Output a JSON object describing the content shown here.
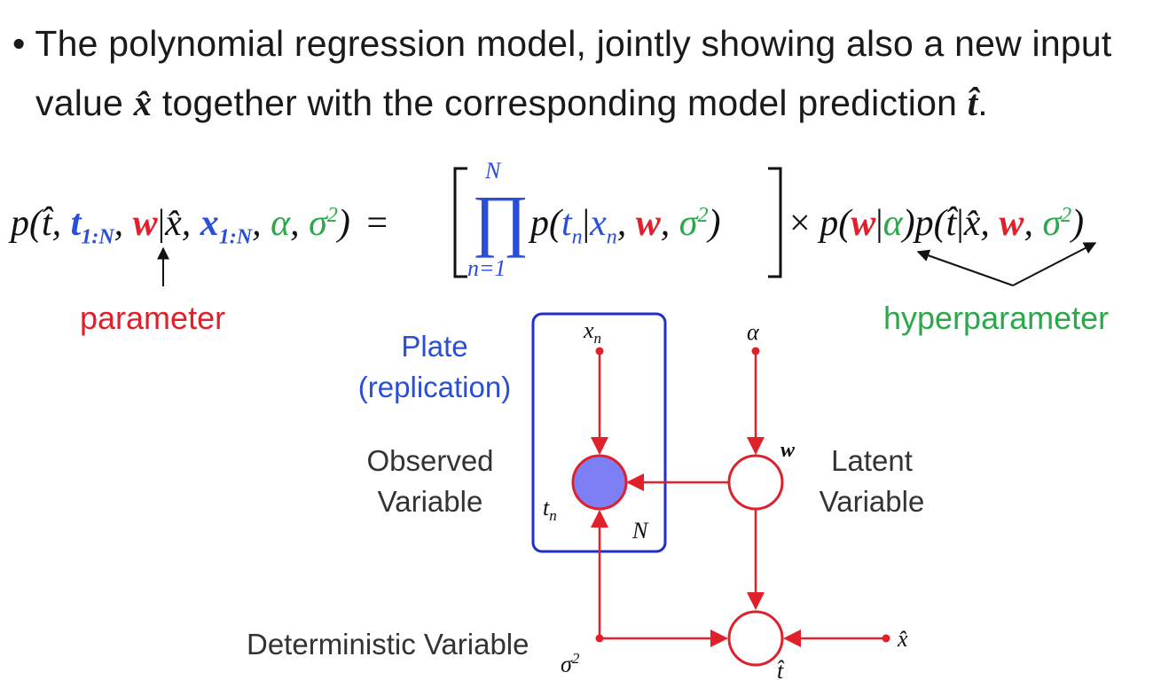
{
  "bullet": {
    "marker": "•",
    "line1": "The polynomial regression model, jointly showing also a new input",
    "line2_pre": "value ",
    "line2_xhat": "x̂",
    "line2_mid": " together with the corresponding model prediction ",
    "line2_that": "t̂",
    "line2_post": "."
  },
  "equation": {
    "lhs": {
      "p_open": "p(",
      "that": "t̂",
      "comma1": ", ",
      "t": "t",
      "t_sub": "1:N",
      "comma2": ", ",
      "w": "w",
      "bar": "|",
      "xhat": "x̂",
      "comma3": ", ",
      "x": "x",
      "x_sub": "1:N",
      "comma4": ", ",
      "alpha": "α",
      "comma5": ", ",
      "sigma": "σ",
      "sigma_sup": "2",
      "close": ")",
      "equals": "="
    },
    "product": {
      "symbol": "∏",
      "upper": "N",
      "lower": "n=1",
      "p_open": "p(",
      "t": "t",
      "t_sub": "n",
      "bar": "|",
      "x": "x",
      "x_sub": "n",
      "comma1": ", ",
      "w": "w",
      "comma2": ", ",
      "sigma": "σ",
      "sigma_sup": "2",
      "close": ")"
    },
    "rhs": {
      "times": "×",
      "p1_open": "p(",
      "w": "w",
      "bar1": "|",
      "alpha": "α",
      "p1_close": ")",
      "p2_open": "p(",
      "that": "t̂",
      "bar2": "|",
      "xhat": "x̂",
      "comma1": ", ",
      "comma2": ", ",
      "sigma": "σ",
      "sigma_sup": "2",
      "close": ")"
    }
  },
  "labels": {
    "parameter": "parameter",
    "hyperparameter": "hyperparameter",
    "plate_line1": "Plate",
    "plate_line2": "(replication)",
    "observed_line1": "Observed",
    "observed_line2": "Variable",
    "latent_line1": "Latent",
    "latent_line2": "Variable",
    "deterministic": "Deterministic Variable"
  },
  "graph": {
    "node_xn": "x",
    "node_xn_sub": "n",
    "node_alpha": "α",
    "node_w": "w",
    "node_tn": "t",
    "node_tn_sub": "n",
    "plate_N": "N",
    "node_sigma": "σ",
    "node_sigma_sup": "2",
    "node_xhat": "x̂",
    "node_that": "t̂"
  },
  "colors": {
    "text": "#1a1a1a",
    "blue": "#2a4fd6",
    "red": "#e0202a",
    "green": "#2aa84a",
    "plate_border": "#1f2fc8",
    "observed_fill": "#7f7ff5",
    "edge": "#e0202a"
  }
}
